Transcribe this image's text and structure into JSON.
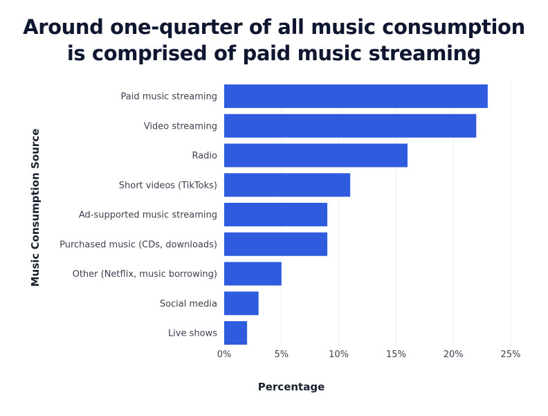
{
  "title_lines": [
    "Around one-quarter of all music consumption",
    "is comprised of paid music streaming"
  ],
  "chart_data": {
    "type": "bar",
    "orientation": "horizontal",
    "title": "Around one-quarter of all music consumption is comprised of paid music streaming",
    "xlabel": "Percentage",
    "ylabel": "Music Consumption Source",
    "categories": [
      "Paid music streaming",
      "Video streaming",
      "Radio",
      "Short videos (TikToks)",
      "Ad-supported music streaming",
      "Purchased music (CDs, downloads)",
      "Other (Netflix, music borrowing)",
      "Social media",
      "Live shows"
    ],
    "values": [
      23,
      22,
      16,
      11,
      9,
      9,
      5,
      3,
      2
    ],
    "xlim": [
      0,
      25
    ],
    "xticks": [
      0,
      5,
      10,
      15,
      20,
      25
    ],
    "xtick_labels": [
      "0%",
      "5%",
      "10%",
      "15%",
      "20%",
      "25%"
    ],
    "grid": "vertical",
    "bar_color": "#2f5bde",
    "grid_color": "#eceef2"
  }
}
